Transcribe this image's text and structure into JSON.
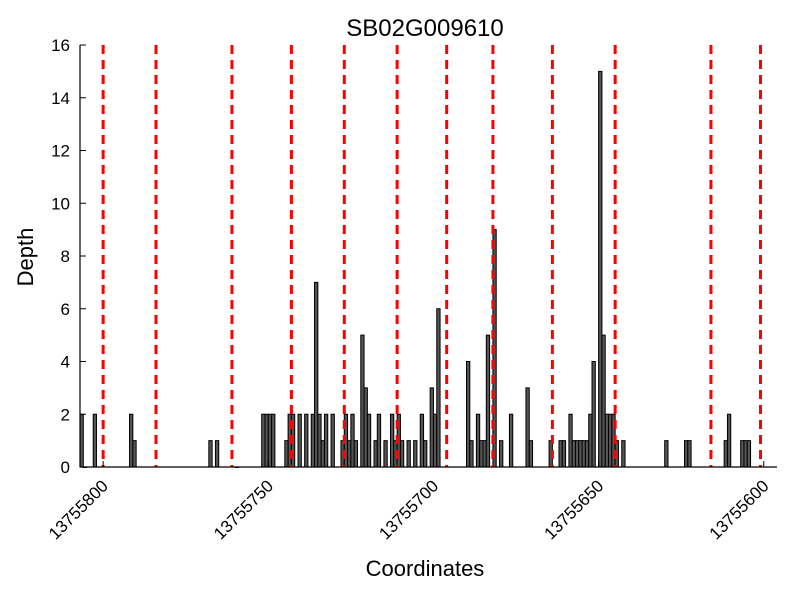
{
  "chart_data": {
    "type": "bar",
    "title": "SB02G009610",
    "xlabel": "Coordinates",
    "ylabel": "Depth",
    "xlim": [
      13755807,
      13755596
    ],
    "ylim": [
      0,
      16
    ],
    "x_inverted": true,
    "x_ticks": [
      13755800,
      13755750,
      13755700,
      13755650,
      13755600
    ],
    "x_tick_labels": [
      "13755800",
      "13755750",
      "13755700",
      "13755650",
      "13755600"
    ],
    "y_ticks": [
      0,
      2,
      4,
      6,
      8,
      10,
      12,
      14,
      16
    ],
    "y_tick_labels": [
      "0",
      "2",
      "4",
      "6",
      "8",
      "10",
      "12",
      "14",
      "16"
    ],
    "bar_width": 1,
    "colors": {
      "bar_fill": "#555555",
      "bar_edge": "#000000",
      "dashed_line": "#ff0000"
    },
    "grid": false,
    "legend": "none",
    "series": [
      {
        "x": [
          13755807,
          13755806,
          13755803,
          13755792,
          13755791,
          13755768,
          13755766,
          13755760,
          13755752,
          13755751,
          13755750,
          13755749,
          13755745,
          13755744,
          13755743,
          13755741,
          13755739,
          13755737,
          13755736,
          13755735,
          13755734,
          13755733,
          13755731,
          13755728,
          13755727,
          13755726,
          13755725,
          13755724,
          13755722,
          13755721,
          13755720,
          13755718,
          13755717,
          13755715,
          13755713,
          13755712,
          13755711,
          13755710,
          13755708,
          13755706,
          13755704,
          13755703,
          13755701,
          13755700,
          13755699,
          13755690,
          13755689,
          13755687,
          13755686,
          13755685,
          13755684,
          13755682,
          13755680,
          13755677,
          13755672,
          13755671,
          13755665,
          13755662,
          13755661,
          13755659,
          13755658,
          13755657,
          13755656,
          13755655,
          13755654,
          13755653,
          13755652,
          13755650,
          13755649,
          13755648,
          13755647,
          13755646,
          13755645,
          13755643,
          13755630,
          13755624,
          13755623,
          13755612,
          13755611,
          13755607,
          13755606,
          13755605
        ],
        "y": [
          2,
          0,
          2,
          2,
          1,
          1,
          1,
          0,
          2,
          2,
          2,
          2,
          1,
          2,
          2,
          2,
          2,
          2,
          7,
          2,
          1,
          2,
          2,
          1,
          2,
          1,
          2,
          1,
          5,
          3,
          2,
          1,
          2,
          1,
          2,
          1,
          2,
          1,
          1,
          1,
          2,
          1,
          3,
          2,
          6,
          4,
          1,
          2,
          1,
          1,
          5,
          9,
          1,
          2,
          3,
          1,
          1,
          1,
          1,
          2,
          1,
          1,
          1,
          1,
          1,
          2,
          4,
          15,
          5,
          2,
          2,
          2,
          1,
          1,
          1,
          1,
          1,
          1,
          2,
          1,
          1,
          1
        ]
      }
    ],
    "reference_lines_x": [
      13755800,
      13755784,
      13755761,
      13755743,
      13755727,
      13755711,
      13755696,
      13755682,
      13755664,
      13755645,
      13755616,
      13755601
    ]
  }
}
